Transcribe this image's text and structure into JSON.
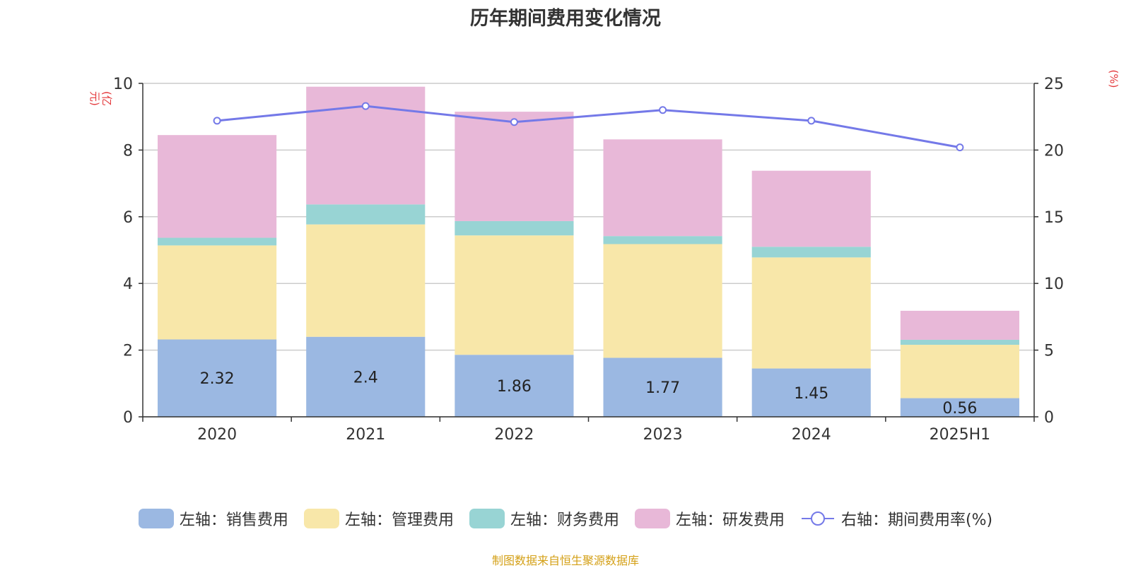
{
  "chart_data": {
    "type": "bar",
    "stacked": true,
    "title": "历年期间费用变化情况",
    "categories": [
      "2020",
      "2021",
      "2022",
      "2023",
      "2024",
      "2025H1"
    ],
    "y_left": {
      "unit": "(亿元)",
      "lim": [
        0,
        10
      ],
      "ticks": [
        0,
        2,
        4,
        6,
        8,
        10
      ]
    },
    "y_right": {
      "unit": "(%)",
      "lim": [
        0,
        25
      ],
      "ticks": [
        0,
        5,
        10,
        15,
        20,
        25
      ]
    },
    "grid": true,
    "legend_position": "bottom",
    "series": [
      {
        "name": "左轴：销售费用",
        "axis": "left",
        "kind": "bar",
        "color": "#9bb8e2",
        "values": [
          2.32,
          2.4,
          1.86,
          1.77,
          1.45,
          0.56
        ],
        "show_labels": true
      },
      {
        "name": "左轴：管理费用",
        "axis": "left",
        "kind": "bar",
        "color": "#f8e7a9",
        "values": [
          2.82,
          3.37,
          3.58,
          3.41,
          3.33,
          1.6
        ]
      },
      {
        "name": "左轴：财务费用",
        "axis": "left",
        "kind": "bar",
        "color": "#98d4d4",
        "values": [
          0.23,
          0.6,
          0.43,
          0.24,
          0.32,
          0.15
        ]
      },
      {
        "name": "左轴：研发费用",
        "axis": "left",
        "kind": "bar",
        "color": "#e8b8d8",
        "values": [
          3.08,
          3.53,
          3.28,
          2.9,
          2.28,
          0.87
        ]
      },
      {
        "name": "右轴：期间费用率(%)",
        "axis": "right",
        "kind": "line",
        "color": "#7479e8",
        "values": [
          22.2,
          23.3,
          22.1,
          23.0,
          22.2,
          20.2
        ]
      }
    ]
  },
  "footer": "制图数据来自恒生聚源数据库"
}
